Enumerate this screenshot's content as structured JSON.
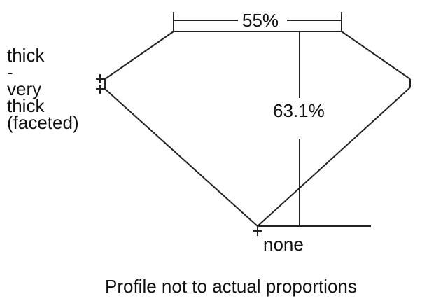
{
  "diagram": {
    "table_percent": "55%",
    "depth_percent": "63.1%",
    "girdle_label_lines": [
      "thick",
      "-",
      "very",
      "thick",
      "(faceted)"
    ],
    "culet_label": "none",
    "caption": "Profile not to actual proportions",
    "line_color": "#222222"
  }
}
